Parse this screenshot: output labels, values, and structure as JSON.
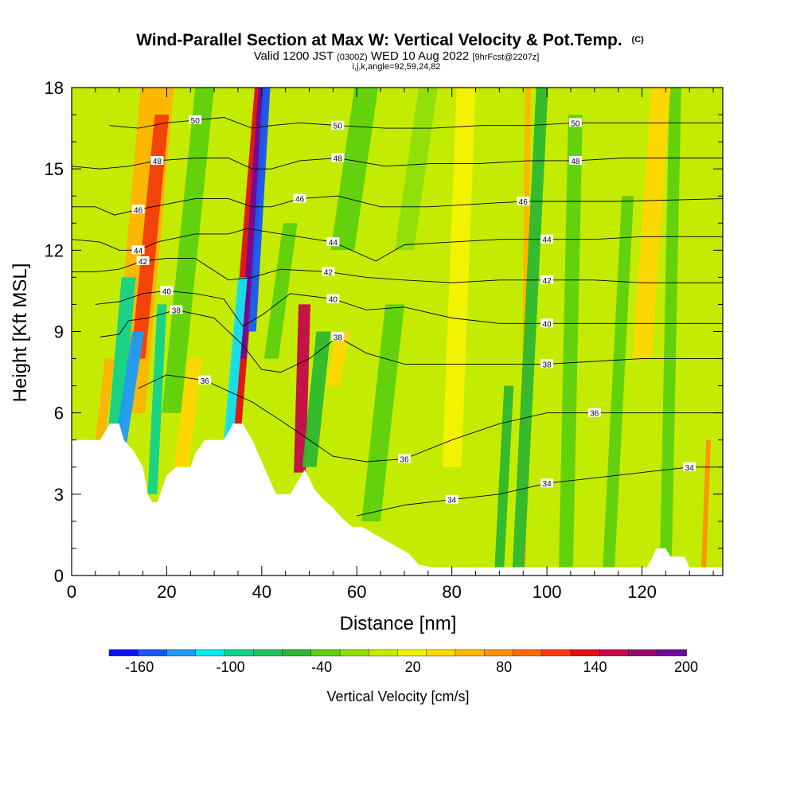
{
  "title": {
    "main": "Wind-Parallel Section at Max W: Vertical Velocity & Pot.Temp.",
    "main_mark": "(C)",
    "valid_prefix": "Valid 1200 JST",
    "valid_utc": "(0300Z)",
    "valid_date": "WED 10 Aug 2022",
    "forecast": "[9hrFcst@2207z]",
    "indices": "i,j,k,angle=92,59,24,82"
  },
  "chart_data": {
    "type": "heatmap",
    "xlabel": "Distance [nm]",
    "ylabel": "Height [Kft MSL]",
    "xlim": [
      0,
      137
    ],
    "ylim": [
      0,
      18
    ],
    "x_ticks": [
      0,
      20,
      40,
      60,
      80,
      100,
      120
    ],
    "y_ticks": [
      0,
      3,
      6,
      9,
      12,
      15,
      18
    ],
    "grid": false,
    "colorbar": {
      "title": "Vertical Velocity [cm/s]",
      "tick_labels": [
        "-160",
        "-100",
        "-40",
        "20",
        "80",
        "140",
        "200"
      ],
      "tick_values": [
        -160,
        -100,
        -40,
        20,
        80,
        140,
        200
      ],
      "bounds": [
        -180,
        200
      ],
      "colors": [
        "#0a14f0",
        "#1458f5",
        "#1c9cf7",
        "#10e6f2",
        "#12d38a",
        "#1ec45a",
        "#2db82e",
        "#5ed10e",
        "#8ede0a",
        "#c4ec02",
        "#f5f200",
        "#ffd600",
        "#ffb400",
        "#ff9000",
        "#ff6a00",
        "#f23c0a",
        "#e0100f",
        "#c2084a",
        "#9a0870",
        "#6e0a9c"
      ],
      "position": "bottom"
    },
    "terrain_kft": [
      [
        0,
        5.0
      ],
      [
        6,
        5.0
      ],
      [
        8,
        5.6
      ],
      [
        10,
        5.6
      ],
      [
        11,
        5.0
      ],
      [
        13,
        4.6
      ],
      [
        15,
        4.0
      ],
      [
        16,
        3.0
      ],
      [
        17,
        2.7
      ],
      [
        18,
        2.7
      ],
      [
        20,
        3.7
      ],
      [
        22,
        4.0
      ],
      [
        25,
        4.0
      ],
      [
        26,
        4.5
      ],
      [
        28,
        5.0
      ],
      [
        30,
        5.0
      ],
      [
        32,
        5.0
      ],
      [
        34,
        5.6
      ],
      [
        36,
        5.6
      ],
      [
        38,
        5.0
      ],
      [
        40,
        4.2
      ],
      [
        41,
        3.8
      ],
      [
        42,
        3.4
      ],
      [
        43,
        3.0
      ],
      [
        46,
        3.0
      ],
      [
        48,
        3.6
      ],
      [
        49,
        3.9
      ],
      [
        50,
        3.6
      ],
      [
        51,
        3.2
      ],
      [
        53,
        2.8
      ],
      [
        55,
        2.5
      ],
      [
        57,
        2.1
      ],
      [
        59,
        1.8
      ],
      [
        61,
        1.8
      ],
      [
        63,
        1.6
      ],
      [
        65,
        1.4
      ],
      [
        67,
        1.2
      ],
      [
        69,
        1.0
      ],
      [
        71,
        0.8
      ],
      [
        73,
        0.4
      ],
      [
        76,
        0.3
      ],
      [
        90,
        0.3
      ],
      [
        100,
        0.3
      ],
      [
        108,
        0.3
      ],
      [
        121,
        0.3
      ],
      [
        122,
        0.6
      ],
      [
        123,
        1.0
      ],
      [
        125,
        1.0
      ],
      [
        126,
        0.7
      ],
      [
        129,
        0.7
      ],
      [
        130,
        0.3
      ],
      [
        137,
        0.3
      ]
    ],
    "theta_contours": [
      {
        "label": "34",
        "points": [
          [
            60,
            2.2
          ],
          [
            70,
            2.6
          ],
          [
            80,
            2.8
          ],
          [
            90,
            3.0
          ],
          [
            100,
            3.4
          ],
          [
            110,
            3.6
          ],
          [
            120,
            3.8
          ],
          [
            130,
            4.0
          ],
          [
            137,
            4.0
          ]
        ]
      },
      {
        "label": "36",
        "points": [
          [
            14,
            6.9
          ],
          [
            20,
            7.4
          ],
          [
            24,
            7.3
          ],
          [
            28,
            7.2
          ],
          [
            38,
            6.4
          ],
          [
            45,
            5.6
          ],
          [
            55,
            4.4
          ],
          [
            62,
            4.2
          ],
          [
            70,
            4.3
          ],
          [
            80,
            5.0
          ],
          [
            90,
            5.6
          ],
          [
            100,
            6.0
          ],
          [
            110,
            6.0
          ],
          [
            120,
            6.0
          ],
          [
            137,
            6.0
          ]
        ]
      },
      {
        "label": "38",
        "points": [
          [
            6,
            8.8
          ],
          [
            10,
            8.9
          ],
          [
            12,
            9.4
          ],
          [
            16,
            9.5
          ],
          [
            22,
            9.8
          ],
          [
            30,
            9.5
          ],
          [
            36,
            8.5
          ],
          [
            40,
            7.6
          ],
          [
            44,
            7.5
          ],
          [
            50,
            8.0
          ],
          [
            56,
            8.8
          ],
          [
            62,
            8.2
          ],
          [
            70,
            7.8
          ],
          [
            80,
            7.8
          ],
          [
            90,
            7.8
          ],
          [
            100,
            7.8
          ],
          [
            110,
            7.9
          ],
          [
            120,
            8.0
          ],
          [
            137,
            8.0
          ]
        ]
      },
      {
        "label": "40",
        "points": [
          [
            5,
            10.0
          ],
          [
            10,
            10.1
          ],
          [
            15,
            10.4
          ],
          [
            20,
            10.5
          ],
          [
            26,
            10.4
          ],
          [
            32,
            10.2
          ],
          [
            36,
            9.2
          ],
          [
            40,
            9.6
          ],
          [
            46,
            10.4
          ],
          [
            55,
            10.2
          ],
          [
            62,
            9.8
          ],
          [
            70,
            9.9
          ],
          [
            80,
            9.5
          ],
          [
            90,
            9.3
          ],
          [
            100,
            9.3
          ],
          [
            110,
            9.3
          ],
          [
            120,
            9.3
          ],
          [
            137,
            9.3
          ]
        ]
      },
      {
        "label": "42",
        "points": [
          [
            0,
            11.2
          ],
          [
            5,
            11.2
          ],
          [
            10,
            11.3
          ],
          [
            15,
            11.6
          ],
          [
            20,
            11.7
          ],
          [
            26,
            11.7
          ],
          [
            33,
            10.9
          ],
          [
            38,
            11.0
          ],
          [
            44,
            11.3
          ],
          [
            54,
            11.2
          ],
          [
            62,
            11.0
          ],
          [
            70,
            10.9
          ],
          [
            80,
            10.8
          ],
          [
            90,
            10.9
          ],
          [
            100,
            10.9
          ],
          [
            110,
            10.9
          ],
          [
            120,
            10.8
          ],
          [
            137,
            10.8
          ]
        ]
      },
      {
        "label": "44",
        "points": [
          [
            0,
            12.4
          ],
          [
            6,
            12.3
          ],
          [
            10,
            12.0
          ],
          [
            14,
            12.0
          ],
          [
            18,
            12.3
          ],
          [
            26,
            12.6
          ],
          [
            33,
            12.6
          ],
          [
            37,
            12.8
          ],
          [
            44,
            12.6
          ],
          [
            55,
            12.3
          ],
          [
            64,
            11.6
          ],
          [
            70,
            12.2
          ],
          [
            80,
            12.3
          ],
          [
            90,
            12.4
          ],
          [
            100,
            12.4
          ],
          [
            110,
            12.4
          ],
          [
            120,
            12.5
          ],
          [
            137,
            12.5
          ]
        ]
      },
      {
        "label": "46",
        "points": [
          [
            0,
            13.6
          ],
          [
            5,
            13.6
          ],
          [
            9,
            13.3
          ],
          [
            14,
            13.5
          ],
          [
            20,
            13.7
          ],
          [
            26,
            13.9
          ],
          [
            33,
            13.9
          ],
          [
            38,
            13.6
          ],
          [
            42,
            13.6
          ],
          [
            48,
            13.9
          ],
          [
            56,
            14.0
          ],
          [
            65,
            13.6
          ],
          [
            75,
            13.6
          ],
          [
            85,
            13.7
          ],
          [
            95,
            13.8
          ],
          [
            105,
            13.8
          ],
          [
            115,
            13.8
          ],
          [
            137,
            13.9
          ]
        ]
      },
      {
        "label": "48",
        "points": [
          [
            0,
            15.1
          ],
          [
            6,
            15.0
          ],
          [
            12,
            15.1
          ],
          [
            18,
            15.3
          ],
          [
            26,
            15.4
          ],
          [
            33,
            15.4
          ],
          [
            38,
            15.0
          ],
          [
            42,
            15.0
          ],
          [
            48,
            15.3
          ],
          [
            56,
            15.4
          ],
          [
            66,
            15.1
          ],
          [
            76,
            15.2
          ],
          [
            86,
            15.2
          ],
          [
            96,
            15.3
          ],
          [
            106,
            15.3
          ],
          [
            116,
            15.4
          ],
          [
            137,
            15.4
          ]
        ]
      },
      {
        "label": "50",
        "points": [
          [
            8,
            16.6
          ],
          [
            14,
            16.5
          ],
          [
            20,
            16.7
          ],
          [
            26,
            16.8
          ],
          [
            32,
            16.9
          ],
          [
            38,
            16.5
          ],
          [
            42,
            16.6
          ],
          [
            48,
            16.7
          ],
          [
            56,
            16.6
          ],
          [
            66,
            16.5
          ],
          [
            76,
            16.5
          ],
          [
            86,
            16.6
          ],
          [
            96,
            16.6
          ],
          [
            106,
            16.7
          ],
          [
            116,
            16.7
          ],
          [
            137,
            16.7
          ]
        ]
      }
    ]
  }
}
